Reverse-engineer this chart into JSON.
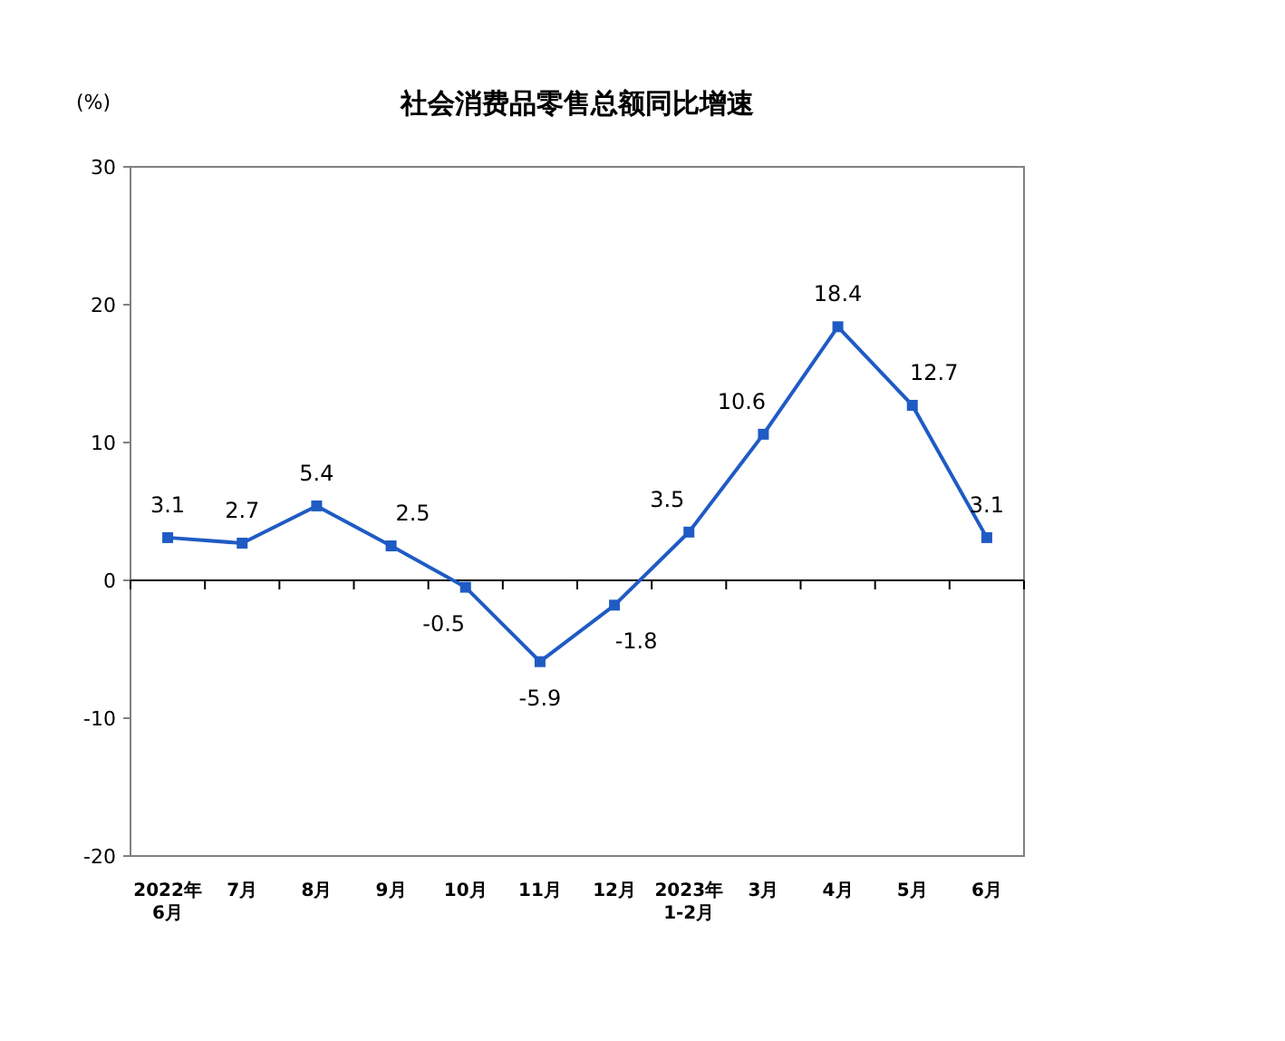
{
  "chart_data": {
    "type": "line",
    "title": "社会消费品零售总额同比增速",
    "ylabel": "(%)",
    "categories": [
      "2022年\n6月",
      "7月",
      "8月",
      "9月",
      "10月",
      "11月",
      "12月",
      "2023年\n1-2月",
      "3月",
      "4月",
      "5月",
      "6月"
    ],
    "values": [
      3.1,
      2.7,
      5.4,
      2.5,
      -0.5,
      -5.9,
      -1.8,
      3.5,
      10.6,
      18.4,
      12.7,
      3.1
    ],
    "color": "#1f5bc4",
    "marker": "square",
    "ylim": [
      -20,
      30
    ],
    "yticks": [
      -20,
      -10,
      0,
      10,
      20,
      30
    ],
    "data_labels": true
  }
}
